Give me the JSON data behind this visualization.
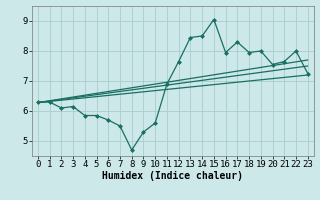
{
  "title": "",
  "xlabel": "Humidex (Indice chaleur)",
  "ylabel": "",
  "bg_color": "#cce8e8",
  "grid_color": "#aacccc",
  "line_color": "#1a6e64",
  "xlim": [
    -0.5,
    23.5
  ],
  "ylim": [
    4.5,
    9.5
  ],
  "xticks": [
    0,
    1,
    2,
    3,
    4,
    5,
    6,
    7,
    8,
    9,
    10,
    11,
    12,
    13,
    14,
    15,
    16,
    17,
    18,
    19,
    20,
    21,
    22,
    23
  ],
  "yticks": [
    5,
    6,
    7,
    8,
    9
  ],
  "main_line_x": [
    0,
    1,
    2,
    3,
    4,
    5,
    6,
    7,
    8,
    9,
    10,
    11,
    12,
    13,
    14,
    15,
    16,
    17,
    18,
    19,
    20,
    21,
    22,
    23
  ],
  "main_line_y": [
    6.3,
    6.3,
    6.1,
    6.15,
    5.85,
    5.85,
    5.7,
    5.5,
    4.7,
    5.3,
    5.6,
    6.9,
    7.65,
    8.45,
    8.5,
    9.05,
    7.95,
    8.3,
    7.95,
    8.0,
    7.55,
    7.65,
    8.0,
    7.25
  ],
  "trend_lines": [
    {
      "x": [
        0,
        23
      ],
      "y": [
        6.28,
        7.2
      ]
    },
    {
      "x": [
        0,
        23
      ],
      "y": [
        6.28,
        7.5
      ]
    },
    {
      "x": [
        0,
        23
      ],
      "y": [
        6.28,
        7.7
      ]
    }
  ],
  "marker": "D",
  "marker_size": 2.0,
  "line_width": 0.9,
  "xlabel_fontsize": 7,
  "tick_fontsize": 6.5
}
